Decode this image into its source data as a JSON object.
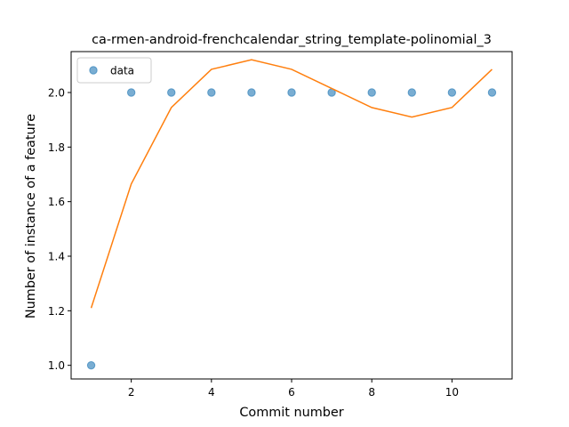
{
  "chart_data": {
    "type": "scatter",
    "title": "ca-rmen-android-frenchcalendar_string_template-polinomial_3",
    "xlabel": "Commit number",
    "ylabel": "Number of instance of a feature",
    "xlim": [
      0.5,
      11.5
    ],
    "ylim": [
      0.95,
      2.15
    ],
    "xticks": [
      2,
      4,
      6,
      8,
      10
    ],
    "yticks": [
      1.0,
      1.2,
      1.4,
      1.6,
      1.8,
      2.0
    ],
    "legend_position": "top-left",
    "grid": false,
    "series": [
      {
        "name": "data",
        "kind": "scatter",
        "color": "#1f77b4",
        "x": [
          1,
          2,
          3,
          4,
          5,
          6,
          7,
          8,
          9,
          10,
          11
        ],
        "y": [
          1.0,
          2.0,
          2.0,
          2.0,
          2.0,
          2.0,
          2.0,
          2.0,
          2.0,
          2.0,
          2.0
        ]
      },
      {
        "kind": "line",
        "color": "#ff7f0e",
        "x": [
          1,
          2,
          3,
          4,
          5,
          6,
          7,
          8,
          9,
          10,
          11
        ],
        "y": [
          1.21,
          1.665,
          1.945,
          2.085,
          2.12,
          2.085,
          2.015,
          1.945,
          1.91,
          1.945,
          2.085
        ]
      }
    ]
  }
}
